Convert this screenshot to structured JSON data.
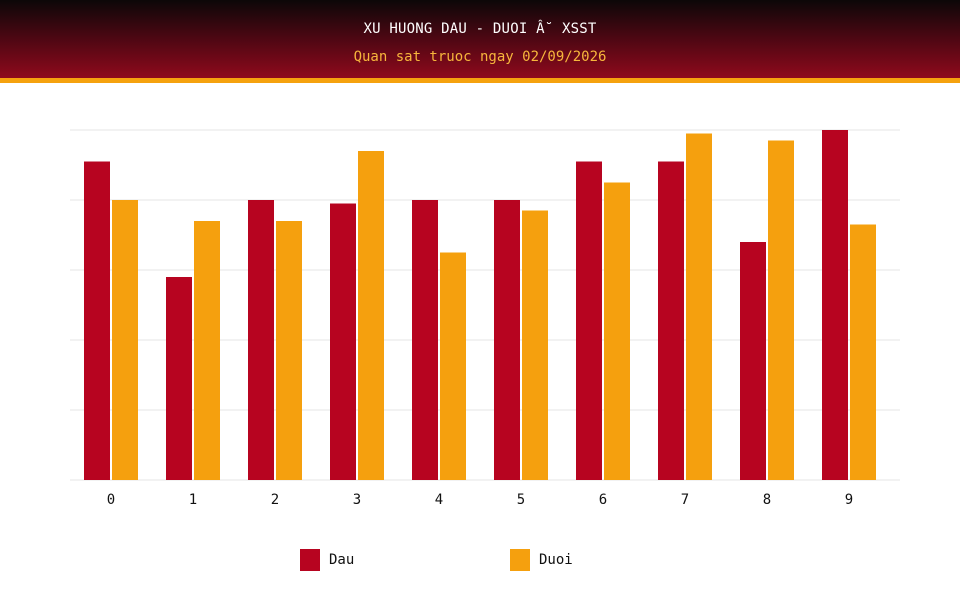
{
  "header": {
    "title": "XU HUONG DAU - DUOI Â˘ XSST",
    "subtitle": "Quan sat truoc ngay 02/09/2026"
  },
  "colors": {
    "dau": "#b70420",
    "duoi": "#f5a00e",
    "grid": "#e6e6e6"
  },
  "chart_data": {
    "type": "bar",
    "categories": [
      "0",
      "1",
      "2",
      "3",
      "4",
      "5",
      "6",
      "7",
      "8",
      "9"
    ],
    "series": [
      {
        "name": "Dau",
        "values": [
          91,
          58,
          80,
          79,
          80,
          80,
          91,
          91,
          68,
          100
        ]
      },
      {
        "name": "Duoi",
        "values": [
          80,
          74,
          74,
          94,
          65,
          77,
          85,
          99,
          97,
          73
        ]
      }
    ],
    "ylim": [
      0,
      100
    ],
    "grid": true,
    "legend_position": "bottom"
  }
}
